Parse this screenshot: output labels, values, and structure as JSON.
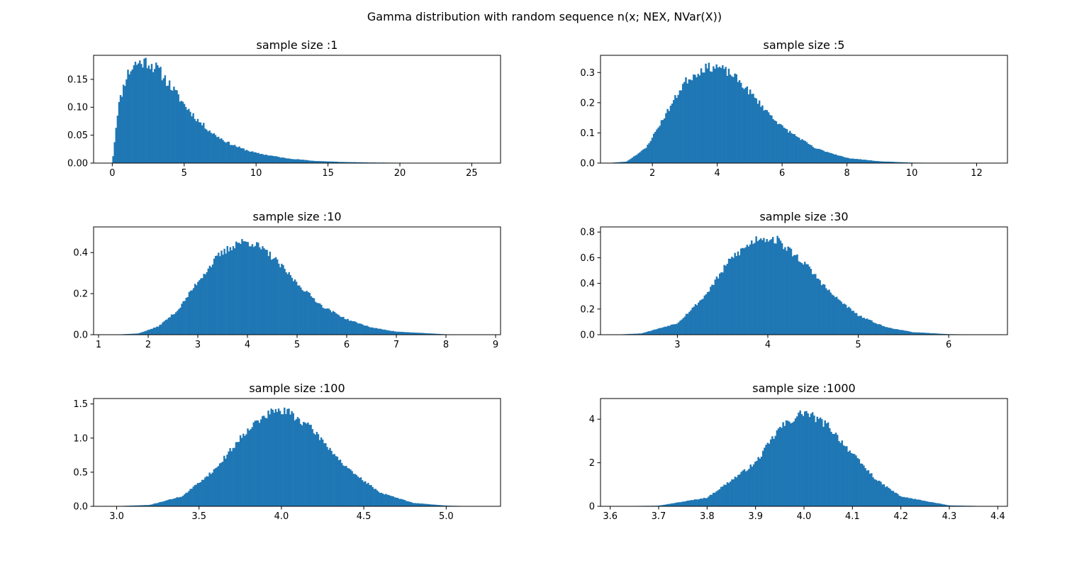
{
  "figure": {
    "suptitle": "Gamma distribution with random sequence n(x; NEX, NVar(X))",
    "bar_color": "#1f77b4"
  },
  "chart_data": [
    {
      "type": "bar",
      "title": "sample size :1",
      "xlabel": "",
      "ylabel": "",
      "xlim": [
        -1.3,
        27.0
      ],
      "ylim": [
        0,
        0.193
      ],
      "xticks": [
        0,
        5,
        10,
        15,
        20,
        25
      ],
      "xtick_labels": [
        "0",
        "5",
        "10",
        "15",
        "20",
        "25"
      ],
      "yticks": [
        0,
        0.05,
        0.1,
        0.15
      ],
      "ytick_labels": [
        "0.00",
        "0.05",
        "0.10",
        "0.15"
      ],
      "range": [
        0.0,
        25.8
      ],
      "knots": [
        [
          0,
          0.0
        ],
        [
          0.4,
          0.1
        ],
        [
          1.0,
          0.158
        ],
        [
          1.6,
          0.178
        ],
        [
          2.4,
          0.182
        ],
        [
          3.2,
          0.167
        ],
        [
          4.0,
          0.14
        ],
        [
          5.0,
          0.105
        ],
        [
          6.0,
          0.075
        ],
        [
          7.0,
          0.053
        ],
        [
          8.0,
          0.037
        ],
        [
          9.0,
          0.026
        ],
        [
          10.0,
          0.018
        ],
        [
          12.0,
          0.009
        ],
        [
          14.0,
          0.004
        ],
        [
          16.0,
          0.002
        ],
        [
          18.0,
          0.001
        ],
        [
          22.0,
          0.0003
        ],
        [
          25.8,
          0.0
        ]
      ],
      "bins": 250,
      "noise": 0.07,
      "seed": 11
    },
    {
      "type": "bar",
      "title": "sample size :5",
      "xlabel": "",
      "ylabel": "",
      "xlim": [
        0.4,
        12.95
      ],
      "ylim": [
        0,
        0.357
      ],
      "xticks": [
        2,
        4,
        6,
        8,
        10,
        12
      ],
      "xtick_labels": [
        "2",
        "4",
        "6",
        "8",
        "10",
        "12"
      ],
      "yticks": [
        0,
        0.1,
        0.2,
        0.3
      ],
      "ytick_labels": [
        "0.0",
        "0.1",
        "0.2",
        "0.3"
      ],
      "range": [
        0.6,
        12.4
      ],
      "knots": [
        [
          0.6,
          0.0
        ],
        [
          1.2,
          0.005
        ],
        [
          1.8,
          0.05
        ],
        [
          2.4,
          0.16
        ],
        [
          3.0,
          0.27
        ],
        [
          3.6,
          0.315
        ],
        [
          4.0,
          0.32
        ],
        [
          4.5,
          0.29
        ],
        [
          5.0,
          0.235
        ],
        [
          5.5,
          0.175
        ],
        [
          6.0,
          0.12
        ],
        [
          7.0,
          0.05
        ],
        [
          8.0,
          0.017
        ],
        [
          9.0,
          0.006
        ],
        [
          10.0,
          0.0015
        ],
        [
          12.4,
          0.0
        ]
      ],
      "bins": 250,
      "noise": 0.05,
      "seed": 23
    },
    {
      "type": "bar",
      "title": "sample size :10",
      "xlabel": "",
      "ylabel": "",
      "xlim": [
        0.9,
        9.1
      ],
      "ylim": [
        0,
        0.525
      ],
      "xticks": [
        1,
        2,
        3,
        4,
        5,
        6,
        7,
        8,
        9
      ],
      "xtick_labels": [
        "1",
        "2",
        "3",
        "4",
        "5",
        "6",
        "7",
        "8",
        "9"
      ],
      "yticks": [
        0,
        0.2,
        0.4
      ],
      "ytick_labels": [
        "0.0",
        "0.2",
        "0.4"
      ],
      "range": [
        1.3,
        8.7
      ],
      "knots": [
        [
          1.3,
          0.0
        ],
        [
          1.8,
          0.006
        ],
        [
          2.2,
          0.04
        ],
        [
          2.6,
          0.12
        ],
        [
          3.0,
          0.26
        ],
        [
          3.4,
          0.38
        ],
        [
          3.8,
          0.45
        ],
        [
          4.1,
          0.45
        ],
        [
          4.5,
          0.38
        ],
        [
          5.0,
          0.25
        ],
        [
          5.5,
          0.14
        ],
        [
          6.0,
          0.075
        ],
        [
          6.5,
          0.035
        ],
        [
          7.0,
          0.015
        ],
        [
          8.0,
          0.002
        ],
        [
          8.7,
          0.0
        ]
      ],
      "bins": 250,
      "noise": 0.05,
      "seed": 37
    },
    {
      "type": "bar",
      "title": "sample size :30",
      "xlabel": "",
      "ylabel": "",
      "xlim": [
        2.15,
        6.65
      ],
      "ylim": [
        0,
        0.84
      ],
      "xticks": [
        3,
        4,
        5,
        6
      ],
      "xtick_labels": [
        "3",
        "4",
        "5",
        "6"
      ],
      "yticks": [
        0,
        0.2,
        0.4,
        0.6,
        0.8
      ],
      "ytick_labels": [
        "0.0",
        "0.2",
        "0.4",
        "0.6",
        "0.8"
      ],
      "range": [
        2.3,
        6.5
      ],
      "knots": [
        [
          2.3,
          0.0
        ],
        [
          2.6,
          0.01
        ],
        [
          3.0,
          0.09
        ],
        [
          3.3,
          0.3
        ],
        [
          3.6,
          0.6
        ],
        [
          3.9,
          0.76
        ],
        [
          4.1,
          0.74
        ],
        [
          4.4,
          0.56
        ],
        [
          4.7,
          0.32
        ],
        [
          5.0,
          0.15
        ],
        [
          5.3,
          0.06
        ],
        [
          5.6,
          0.02
        ],
        [
          6.0,
          0.004
        ],
        [
          6.5,
          0.0
        ]
      ],
      "bins": 250,
      "noise": 0.05,
      "seed": 53
    },
    {
      "type": "bar",
      "title": "sample size :100",
      "xlabel": "",
      "ylabel": "",
      "xlim": [
        2.86,
        5.33
      ],
      "ylim": [
        0,
        1.58
      ],
      "xticks": [
        3.0,
        3.5,
        4.0,
        4.5,
        5.0
      ],
      "xtick_labels": [
        "3.0",
        "3.5",
        "4.0",
        "4.5",
        "5.0"
      ],
      "yticks": [
        0,
        0.5,
        1.0,
        1.5
      ],
      "ytick_labels": [
        "0.0",
        "0.5",
        "1.0",
        "1.5"
      ],
      "range": [
        2.97,
        5.2
      ],
      "knots": [
        [
          2.97,
          0.0
        ],
        [
          3.2,
          0.02
        ],
        [
          3.4,
          0.15
        ],
        [
          3.6,
          0.55
        ],
        [
          3.8,
          1.15
        ],
        [
          3.95,
          1.4
        ],
        [
          4.05,
          1.38
        ],
        [
          4.2,
          1.1
        ],
        [
          4.4,
          0.55
        ],
        [
          4.6,
          0.2
        ],
        [
          4.8,
          0.05
        ],
        [
          5.0,
          0.01
        ],
        [
          5.2,
          0.0
        ]
      ],
      "bins": 250,
      "noise": 0.05,
      "seed": 71
    },
    {
      "type": "bar",
      "title": "sample size :1000",
      "xlabel": "",
      "ylabel": "",
      "xlim": [
        3.58,
        4.42
      ],
      "ylim": [
        0,
        4.95
      ],
      "xticks": [
        3.6,
        3.7,
        3.8,
        3.9,
        4.0,
        4.1,
        4.2,
        4.3,
        4.4
      ],
      "xtick_labels": [
        "3.6",
        "3.7",
        "3.8",
        "3.9",
        "4.0",
        "4.1",
        "4.2",
        "4.3",
        "4.4"
      ],
      "yticks": [
        0,
        2,
        4
      ],
      "ytick_labels": [
        "0",
        "2",
        "4"
      ],
      "range": [
        3.6,
        4.4
      ],
      "knots": [
        [
          3.6,
          0.0
        ],
        [
          3.7,
          0.03
        ],
        [
          3.8,
          0.4
        ],
        [
          3.9,
          2.0
        ],
        [
          3.95,
          3.6
        ],
        [
          4.0,
          4.35
        ],
        [
          4.05,
          3.7
        ],
        [
          4.1,
          2.4
        ],
        [
          4.15,
          1.2
        ],
        [
          4.2,
          0.45
        ],
        [
          4.3,
          0.04
        ],
        [
          4.4,
          0.0
        ]
      ],
      "bins": 250,
      "noise": 0.05,
      "seed": 97
    }
  ]
}
